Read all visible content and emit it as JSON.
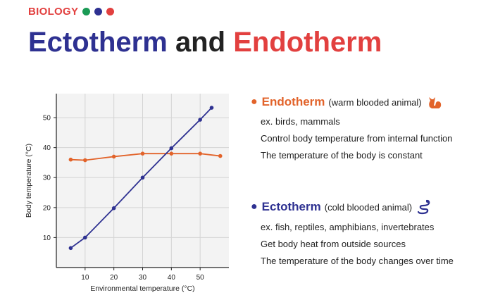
{
  "header": {
    "subject": "BIOLOGY",
    "dots": [
      "#1a9a55",
      "#2e3191",
      "#e2403f"
    ],
    "title_part1": "Ectotherm",
    "title_part2": "and",
    "title_part3": "Endotherm"
  },
  "chart_data": {
    "type": "line",
    "xlabel": "Environmental temperature (°C)",
    "ylabel": "Body temperature (°C)",
    "xlim": [
      0,
      60
    ],
    "ylim": [
      0,
      58
    ],
    "xticks": [
      10,
      20,
      30,
      40,
      50
    ],
    "yticks": [
      10,
      20,
      30,
      40,
      50
    ],
    "grid": true,
    "series": [
      {
        "name": "Endotherm",
        "color": "#e2632a",
        "x": [
          5,
          10,
          20,
          30,
          40,
          50,
          57
        ],
        "y": [
          36,
          35.8,
          37,
          38,
          38,
          38,
          37.2
        ]
      },
      {
        "name": "Ectotherm",
        "color": "#2e3191",
        "x": [
          5,
          10,
          20,
          30,
          40,
          50,
          54
        ],
        "y": [
          6.5,
          10,
          19.8,
          30,
          39.8,
          49.3,
          53.3
        ]
      }
    ]
  },
  "legend": {
    "endotherm": {
      "name": "Endotherm",
      "desc": "(warm blooded animal)",
      "icon": "cat-icon",
      "lines": [
        "ex. birds, mammals",
        "Control body temperature from internal function",
        "The temperature of the body is constant"
      ]
    },
    "ectotherm": {
      "name": "Ectotherm",
      "desc": "(cold blooded animal)",
      "icon": "snake-icon",
      "lines": [
        "ex. fish, reptiles, amphibians, invertebrates",
        "Get body heat from outside sources",
        "The temperature of the body changes over time"
      ]
    }
  }
}
